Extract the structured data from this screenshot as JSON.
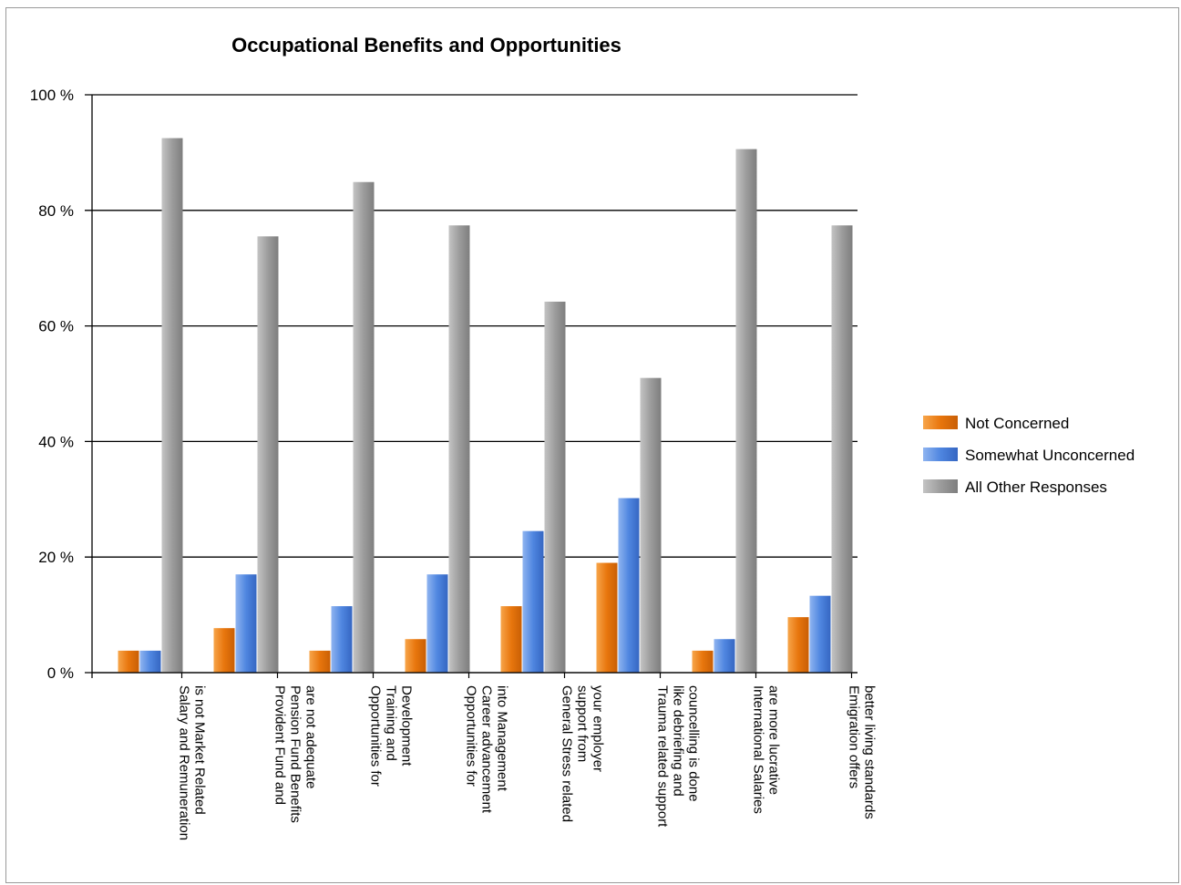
{
  "chart_data": {
    "type": "bar",
    "title": "Occupational Benefits and Opportunities",
    "xlabel": "",
    "ylabel": "",
    "ylim": [
      0,
      100
    ],
    "y_ticks": [
      "100 %",
      "80 %",
      "60 %",
      "40 %",
      "20 %",
      "0 %"
    ],
    "grid": true,
    "legend_position": "right",
    "categories": [
      [
        "Salary and Remuneration",
        "is not Market Related"
      ],
      [
        "Provident Fund and",
        "Pension Fund Benefits",
        "are not adequate"
      ],
      [
        "Opportunities for",
        "Training and",
        "Development"
      ],
      [
        "Opportunities for",
        "Career advancement",
        "into Management"
      ],
      [
        "General Stress related",
        "support from",
        "your employer"
      ],
      [
        "Trauma related support",
        "like debriefing and",
        "councelling is done"
      ],
      [
        "International Salaries",
        "are more lucrative"
      ],
      [
        "Emigration offers",
        "better living standards"
      ]
    ],
    "series": [
      {
        "name": "Not Concerned",
        "color": "#e8760d",
        "values": [
          3.8,
          7.7,
          3.8,
          5.8,
          11.5,
          19.0,
          3.8,
          9.6
        ]
      },
      {
        "name": "Somewhat Unconcerned",
        "color": "#4f86e0",
        "values": [
          3.8,
          17.0,
          11.5,
          17.0,
          24.5,
          30.2,
          5.8,
          13.3
        ]
      },
      {
        "name": "All Other Responses",
        "color": "#9c9c9c",
        "values": [
          92.5,
          75.5,
          84.9,
          77.4,
          64.2,
          51.0,
          90.6,
          77.4
        ]
      }
    ]
  }
}
